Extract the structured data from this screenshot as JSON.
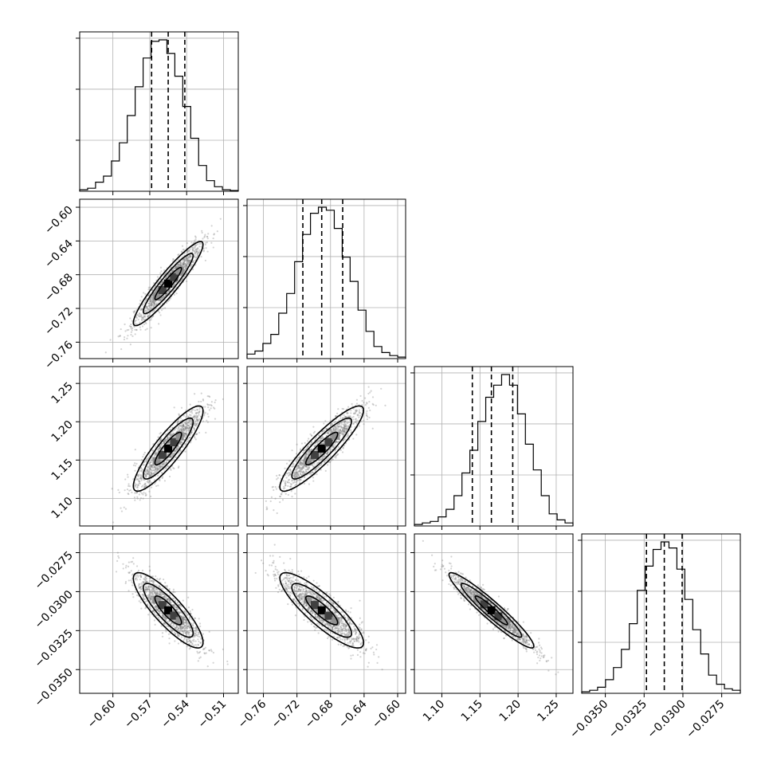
{
  "chart_data": {
    "type": "corner",
    "parameters": [
      {
        "index": 0,
        "range": [
          -0.627,
          -0.498
        ],
        "ticks": [
          -0.6,
          -0.57,
          -0.54,
          -0.51
        ],
        "tick_labels": [
          "−0.60",
          "−0.57",
          "−0.54",
          "−0.51"
        ],
        "quantiles": [
          -0.5685,
          -0.555,
          -0.5415
        ],
        "hist_counts": [
          0.01,
          0.02,
          0.06,
          0.1,
          0.2,
          0.32,
          0.5,
          0.69,
          0.88,
          0.99,
          1.0,
          0.91,
          0.76,
          0.56,
          0.35,
          0.17,
          0.07,
          0.03,
          0.01,
          0.005
        ]
      },
      {
        "index": 1,
        "range": [
          -0.7795,
          -0.5905
        ],
        "ticks": [
          -0.76,
          -0.72,
          -0.68,
          -0.64,
          -0.6
        ],
        "tick_labels": [
          "−0.76",
          "−0.72",
          "−0.68",
          "−0.64",
          "−0.60"
        ],
        "quantiles": [
          -0.713,
          -0.6905,
          -0.6655
        ],
        "hist_counts": [
          0.03,
          0.05,
          0.1,
          0.16,
          0.3,
          0.43,
          0.64,
          0.82,
          0.96,
          1.0,
          0.98,
          0.86,
          0.67,
          0.51,
          0.32,
          0.18,
          0.08,
          0.04,
          0.02,
          0.01
        ]
      },
      {
        "index": 2,
        "range": [
          1.064,
          1.272
        ],
        "ticks": [
          1.1,
          1.15,
          1.2,
          1.25
        ],
        "tick_labels": [
          "1.10",
          "1.15",
          "1.20",
          "1.25"
        ],
        "quantiles": [
          1.14,
          1.165,
          1.193
        ],
        "hist_counts": [
          0.01,
          0.02,
          0.03,
          0.06,
          0.11,
          0.2,
          0.35,
          0.5,
          0.69,
          0.85,
          0.93,
          1.0,
          0.93,
          0.74,
          0.54,
          0.37,
          0.2,
          0.08,
          0.04,
          0.02
        ]
      },
      {
        "index": 3,
        "range": [
          -0.03652,
          -0.0263
        ],
        "ticks": [
          -0.035,
          -0.0325,
          -0.03,
          -0.0275
        ],
        "tick_labels": [
          "−0.0350",
          "−0.0325",
          "−0.0300",
          "−0.0275"
        ],
        "quantiles": [
          -0.03235,
          -0.0312,
          -0.03005
        ],
        "hist_counts": [
          0.01,
          0.02,
          0.04,
          0.09,
          0.17,
          0.29,
          0.46,
          0.68,
          0.84,
          0.95,
          1.0,
          0.96,
          0.82,
          0.62,
          0.42,
          0.26,
          0.12,
          0.06,
          0.03,
          0.02
        ]
      }
    ],
    "correlations": [
      [
        1,
        0.93,
        0.88,
        -0.85
      ],
      [
        0.93,
        1,
        0.9,
        -0.86
      ],
      [
        0.88,
        0.9,
        1,
        -0.95
      ],
      [
        -0.85,
        -0.86,
        -0.95,
        1
      ]
    ],
    "grid": true
  }
}
